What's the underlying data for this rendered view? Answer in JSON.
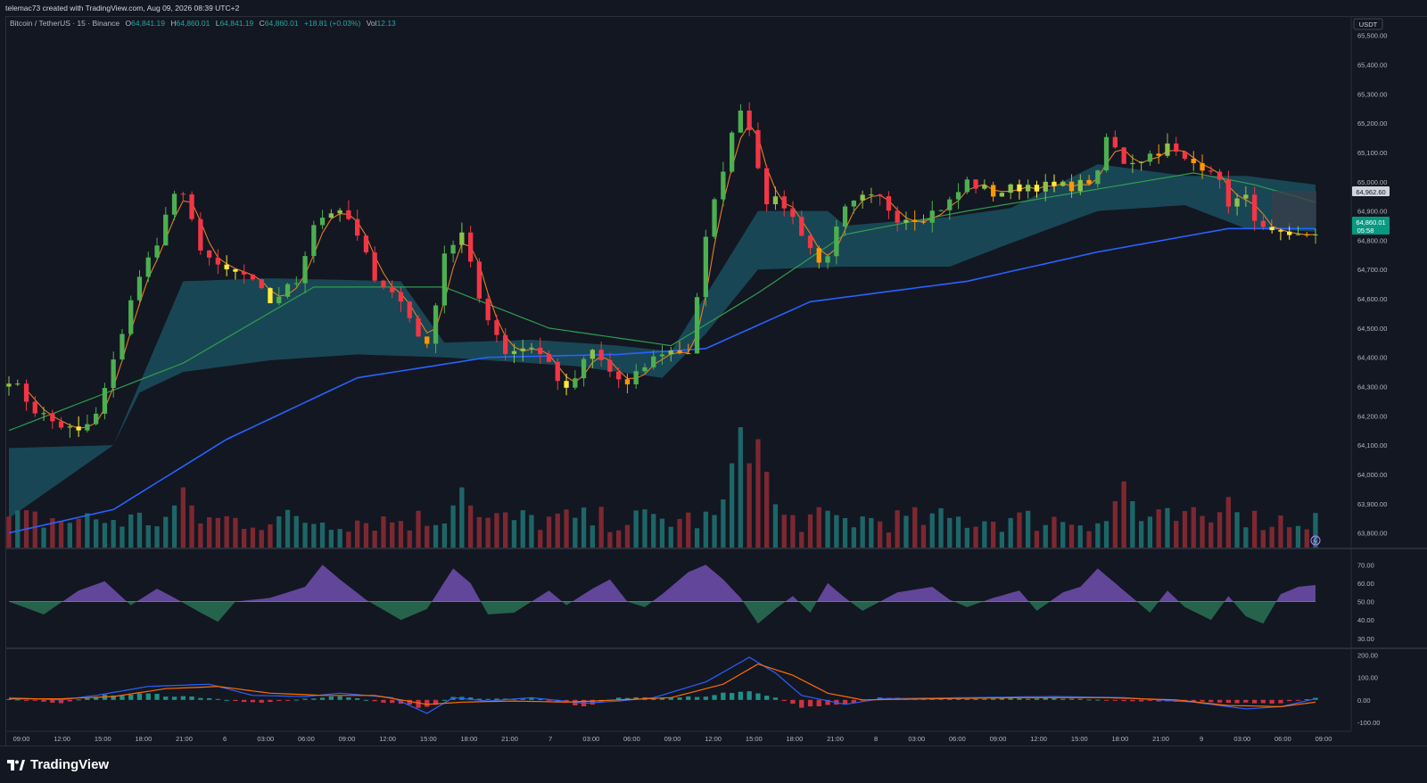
{
  "header": {
    "credit": "telemac73 created with TradingView.com, Aug 09, 2026 08:39 UTC+2"
  },
  "legend": {
    "symbol": "Bitcoin / TetherUS · 15 · Binance",
    "open_label": "O",
    "open": "64,841.19",
    "high_label": "H",
    "high": "64,860.01",
    "low_label": "L",
    "low": "64,841.19",
    "close_label": "C",
    "close": "64,860.01",
    "change": "+18.81 (+0.03%)",
    "vol_label": "Vol",
    "vol": "12.13"
  },
  "footer": {
    "brand": "TradingView"
  },
  "price_axis": {
    "currency": "USDT",
    "ticks": [
      "65,500.00",
      "65,400.00",
      "65,300.00",
      "65,200.00",
      "65,100.00",
      "65,000.00",
      "64,900.00",
      "64,800.00",
      "64,700.00",
      "64,600.00",
      "64,500.00",
      "64,400.00",
      "64,300.00",
      "64,200.00",
      "64,100.00",
      "64,000.00",
      "63,900.00",
      "63,800.00"
    ],
    "marker_level": "64,962.60",
    "last_price": "64,860.01",
    "countdown": "05:58"
  },
  "rsi_axis": {
    "ticks": [
      "70.00",
      "60.00",
      "50.00",
      "40.00",
      "30.00"
    ]
  },
  "macd_axis": {
    "ticks": [
      "200.00",
      "100.00",
      "0.00",
      "-100.00"
    ]
  },
  "time_axis": {
    "ticks": [
      "09:00",
      "12:00",
      "15:00",
      "18:00",
      "21:00",
      "6",
      "03:00",
      "06:00",
      "09:00",
      "12:00",
      "15:00",
      "18:00",
      "21:00",
      "7",
      "03:00",
      "06:00",
      "09:00",
      "12:00",
      "15:00",
      "18:00",
      "21:00",
      "8",
      "03:00",
      "06:00",
      "09:00",
      "12:00",
      "15:00",
      "18:00",
      "21:00",
      "9",
      "03:00",
      "06:00",
      "09:00"
    ]
  },
  "colors": {
    "bg": "#131722",
    "up": "#4caf50",
    "up_light": "#8bc34a",
    "down": "#f23645",
    "orange": "#ff9800",
    "yellow": "#ffeb3b",
    "ema_fast": "#e67e22",
    "ema_mid": "#2e9e4f",
    "ema_slow": "#2962ff",
    "cloud": "#1f6e80",
    "vol_up": "#1f6f70",
    "vol_down": "#8a2a33",
    "rsi_up": "#7e57c2",
    "rsi_down": "#2e7d5b"
  },
  "chart_data": {
    "type": "candlestick",
    "timeframe": "15m",
    "ylim": [
      63750,
      65560
    ],
    "price_path": [
      [
        0,
        64330
      ],
      [
        3,
        64220
      ],
      [
        5,
        64180
      ],
      [
        8,
        64140
      ],
      [
        10,
        64200
      ],
      [
        12,
        64380
      ],
      [
        14,
        64600
      ],
      [
        17,
        64800
      ],
      [
        19,
        64960
      ],
      [
        20,
        64940
      ],
      [
        22,
        64780
      ],
      [
        24,
        64700
      ],
      [
        27,
        64680
      ],
      [
        30,
        64590
      ],
      [
        33,
        64660
      ],
      [
        35,
        64860
      ],
      [
        37,
        64900
      ],
      [
        39,
        64870
      ],
      [
        42,
        64680
      ],
      [
        45,
        64590
      ],
      [
        48,
        64430
      ],
      [
        50,
        64760
      ],
      [
        52,
        64820
      ],
      [
        54,
        64600
      ],
      [
        57,
        64420
      ],
      [
        60,
        64440
      ],
      [
        62,
        64380
      ],
      [
        64,
        64280
      ],
      [
        66,
        64380
      ],
      [
        67,
        64420
      ],
      [
        69,
        64350
      ],
      [
        71,
        64300
      ],
      [
        73,
        64370
      ],
      [
        75,
        64420
      ],
      [
        78,
        64420
      ],
      [
        80,
        64800
      ],
      [
        82,
        65050
      ],
      [
        84,
        65260
      ],
      [
        85,
        65180
      ],
      [
        87,
        64940
      ],
      [
        89,
        64920
      ],
      [
        91,
        64830
      ],
      [
        93,
        64720
      ],
      [
        94,
        64760
      ],
      [
        96,
        64900
      ],
      [
        98,
        64940
      ],
      [
        100,
        64940
      ],
      [
        102,
        64880
      ],
      [
        105,
        64880
      ],
      [
        108,
        64930
      ],
      [
        110,
        65000
      ],
      [
        113,
        64960
      ],
      [
        117,
        64990
      ],
      [
        120,
        64980
      ],
      [
        123,
        64990
      ],
      [
        125,
        65020
      ],
      [
        126,
        65150
      ],
      [
        128,
        65070
      ],
      [
        130,
        65080
      ],
      [
        133,
        65120
      ],
      [
        135,
        65070
      ],
      [
        138,
        65050
      ],
      [
        140,
        64930
      ],
      [
        142,
        64940
      ],
      [
        144,
        64830
      ],
      [
        147,
        64800
      ],
      [
        150,
        64830
      ]
    ],
    "ema_mid_path": [
      [
        0,
        64150
      ],
      [
        20,
        64380
      ],
      [
        35,
        64640
      ],
      [
        50,
        64640
      ],
      [
        62,
        64500
      ],
      [
        76,
        64440
      ],
      [
        86,
        64620
      ],
      [
        96,
        64820
      ],
      [
        110,
        64900
      ],
      [
        126,
        64980
      ],
      [
        136,
        65030
      ],
      [
        143,
        64990
      ],
      [
        150,
        64930
      ]
    ],
    "ema_slow_path": [
      [
        0,
        63800
      ],
      [
        12,
        63880
      ],
      [
        25,
        64120
      ],
      [
        40,
        64330
      ],
      [
        55,
        64400
      ],
      [
        70,
        64410
      ],
      [
        80,
        64430
      ],
      [
        92,
        64590
      ],
      [
        110,
        64660
      ],
      [
        125,
        64760
      ],
      [
        140,
        64840
      ],
      [
        150,
        64840
      ]
    ],
    "cloud": {
      "upper_path": [
        [
          0,
          64090
        ],
        [
          12,
          64100
        ],
        [
          20,
          64660
        ],
        [
          30,
          64670
        ],
        [
          45,
          64660
        ],
        [
          50,
          64450
        ],
        [
          60,
          64460
        ],
        [
          70,
          64440
        ],
        [
          76,
          64420
        ],
        [
          86,
          64900
        ],
        [
          94,
          64900
        ],
        [
          96,
          64850
        ],
        [
          108,
          64880
        ],
        [
          115,
          64910
        ],
        [
          125,
          65060
        ],
        [
          135,
          65020
        ],
        [
          142,
          65020
        ],
        [
          150,
          64990
        ]
      ],
      "lower_path": [
        [
          0,
          63850
        ],
        [
          12,
          64100
        ],
        [
          15,
          64280
        ],
        [
          20,
          64350
        ],
        [
          30,
          64390
        ],
        [
          40,
          64410
        ],
        [
          50,
          64400
        ],
        [
          65,
          64370
        ],
        [
          75,
          64330
        ],
        [
          80,
          64480
        ],
        [
          86,
          64700
        ],
        [
          96,
          64710
        ],
        [
          108,
          64710
        ],
        [
          115,
          64790
        ],
        [
          125,
          64900
        ],
        [
          135,
          64920
        ],
        [
          142,
          64840
        ],
        [
          150,
          64830
        ]
      ]
    },
    "volume_spikes": [
      [
        20,
        0.5
      ],
      [
        52,
        0.5
      ],
      [
        84,
        1.0
      ],
      [
        86,
        0.9
      ],
      [
        128,
        0.55
      ],
      [
        140,
        0.42
      ]
    ],
    "rsi": {
      "ylim": [
        28,
        74
      ],
      "midline": 50,
      "path": [
        [
          0,
          50
        ],
        [
          4,
          43
        ],
        [
          8,
          56
        ],
        [
          11,
          61
        ],
        [
          14,
          48
        ],
        [
          17,
          57
        ],
        [
          19,
          52
        ],
        [
          22,
          44
        ],
        [
          24,
          39
        ],
        [
          26,
          50
        ],
        [
          30,
          52
        ],
        [
          34,
          58
        ],
        [
          36,
          70
        ],
        [
          38,
          62
        ],
        [
          41,
          51
        ],
        [
          45,
          40
        ],
        [
          48,
          46
        ],
        [
          51,
          68
        ],
        [
          53,
          60
        ],
        [
          55,
          43
        ],
        [
          58,
          44
        ],
        [
          62,
          56
        ],
        [
          64,
          48
        ],
        [
          67,
          57
        ],
        [
          69,
          62
        ],
        [
          71,
          50
        ],
        [
          73,
          47
        ],
        [
          75,
          54
        ],
        [
          78,
          66
        ],
        [
          80,
          70
        ],
        [
          82,
          62
        ],
        [
          84,
          52
        ],
        [
          86,
          38
        ],
        [
          88,
          46
        ],
        [
          90,
          53
        ],
        [
          92,
          44
        ],
        [
          94,
          60
        ],
        [
          96,
          52
        ],
        [
          98,
          45
        ],
        [
          102,
          55
        ],
        [
          106,
          58
        ],
        [
          108,
          51
        ],
        [
          110,
          47
        ],
        [
          113,
          52
        ],
        [
          116,
          56
        ],
        [
          118,
          45
        ],
        [
          121,
          55
        ],
        [
          123,
          58
        ],
        [
          125,
          68
        ],
        [
          127,
          60
        ],
        [
          129,
          52
        ],
        [
          131,
          44
        ],
        [
          133,
          56
        ],
        [
          135,
          47
        ],
        [
          138,
          40
        ],
        [
          140,
          53
        ],
        [
          142,
          42
        ],
        [
          144,
          38
        ],
        [
          146,
          54
        ],
        [
          148,
          58
        ],
        [
          150,
          59
        ]
      ]
    },
    "macd": {
      "ylim": [
        -120,
        210
      ],
      "macd_path": [
        [
          0,
          10
        ],
        [
          6,
          0
        ],
        [
          10,
          20
        ],
        [
          16,
          60
        ],
        [
          23,
          70
        ],
        [
          28,
          20
        ],
        [
          34,
          15
        ],
        [
          38,
          30
        ],
        [
          44,
          10
        ],
        [
          48,
          -60
        ],
        [
          51,
          10
        ],
        [
          55,
          -5
        ],
        [
          60,
          10
        ],
        [
          66,
          -15
        ],
        [
          70,
          -5
        ],
        [
          74,
          10
        ],
        [
          80,
          80
        ],
        [
          85,
          190
        ],
        [
          88,
          120
        ],
        [
          91,
          20
        ],
        [
          96,
          -20
        ],
        [
          100,
          5
        ],
        [
          110,
          10
        ],
        [
          120,
          15
        ],
        [
          128,
          10
        ],
        [
          136,
          -10
        ],
        [
          142,
          -40
        ],
        [
          146,
          -30
        ],
        [
          150,
          5
        ]
      ],
      "signal_path": [
        [
          0,
          5
        ],
        [
          6,
          5
        ],
        [
          12,
          15
        ],
        [
          18,
          50
        ],
        [
          24,
          60
        ],
        [
          30,
          30
        ],
        [
          36,
          20
        ],
        [
          42,
          20
        ],
        [
          48,
          -20
        ],
        [
          52,
          -10
        ],
        [
          58,
          -5
        ],
        [
          64,
          -10
        ],
        [
          70,
          0
        ],
        [
          76,
          10
        ],
        [
          82,
          70
        ],
        [
          86,
          160
        ],
        [
          90,
          110
        ],
        [
          94,
          30
        ],
        [
          98,
          0
        ],
        [
          106,
          5
        ],
        [
          116,
          10
        ],
        [
          126,
          10
        ],
        [
          134,
          0
        ],
        [
          140,
          -25
        ],
        [
          146,
          -30
        ],
        [
          150,
          -10
        ]
      ],
      "hist_path": [
        [
          0,
          5
        ],
        [
          6,
          -15
        ],
        [
          10,
          20
        ],
        [
          16,
          30
        ],
        [
          23,
          10
        ],
        [
          28,
          -15
        ],
        [
          34,
          5
        ],
        [
          38,
          20
        ],
        [
          44,
          -20
        ],
        [
          48,
          -40
        ],
        [
          51,
          20
        ],
        [
          55,
          5
        ],
        [
          60,
          10
        ],
        [
          66,
          -30
        ],
        [
          70,
          10
        ],
        [
          74,
          15
        ],
        [
          80,
          20
        ],
        [
          84,
          50
        ],
        [
          88,
          10
        ],
        [
          91,
          -40
        ],
        [
          96,
          -20
        ],
        [
          100,
          10
        ],
        [
          110,
          5
        ],
        [
          120,
          10
        ],
        [
          128,
          -5
        ],
        [
          136,
          -10
        ],
        [
          142,
          -20
        ],
        [
          146,
          -15
        ],
        [
          150,
          10
        ]
      ]
    }
  }
}
